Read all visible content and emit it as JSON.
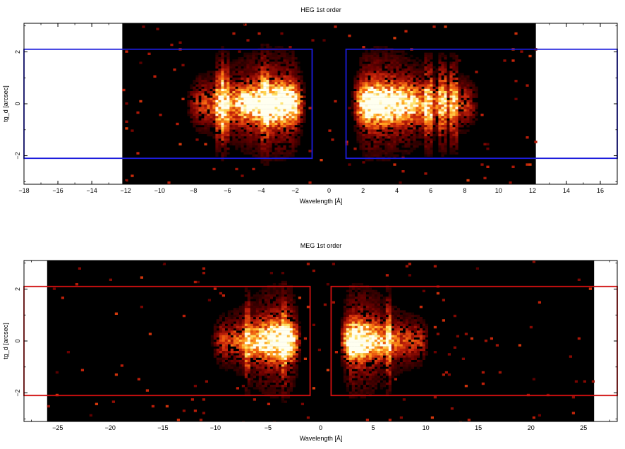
{
  "chart_data": [
    {
      "type": "heatmap",
      "title": "HEG 1st order",
      "xlabel": "Wavelength [Å]",
      "ylabel": "tg_d [arcsec]",
      "xlim": [
        -18,
        17
      ],
      "ylim": [
        -3.1,
        3.1
      ],
      "x_ticks": [
        -18,
        -16,
        -14,
        -12,
        -10,
        -8,
        -6,
        -4,
        -2,
        0,
        2,
        4,
        6,
        8,
        10,
        12,
        14,
        16
      ],
      "x_tick_labels": [
        "−18",
        "−16",
        "−14",
        "−12",
        "−10",
        "−8",
        "−6",
        "−4",
        "−2",
        "0",
        "2",
        "4",
        "6",
        "8",
        "10",
        "12",
        "14",
        "16"
      ],
      "y_ticks": [
        -2,
        0,
        2
      ],
      "y_tick_labels": [
        "−2",
        "0",
        "2"
      ],
      "data_extent_x": [
        -12.2,
        12.2
      ],
      "data_extent_y": [
        -3.1,
        3.1
      ],
      "colormap": [
        "#000000",
        "#6b0000",
        "#c0200a",
        "#f06010",
        "#ffa020",
        "#ffe060",
        "#fffff0"
      ],
      "background_color": "#000000",
      "intensity_blobs": [
        {
          "x0": -8.5,
          "x1": -1.3,
          "peak": -3.2,
          "sigma_y": 0.45
        },
        {
          "x0": 1.3,
          "x1": 9.0,
          "peak": 2.8,
          "sigma_y": 0.45
        }
      ],
      "line_features": [
        -6.5,
        -6.2,
        -3.8,
        5.9,
        6.7,
        7.3
      ],
      "extraction_regions": [
        {
          "x0": -18,
          "x1": -1.0,
          "y0": -2.1,
          "y1": 2.1
        },
        {
          "x0": 1.0,
          "x1": 17,
          "y0": -2.1,
          "y1": 2.1
        }
      ],
      "region_color": "#1c1cdc"
    },
    {
      "type": "heatmap",
      "title": "MEG 1st order",
      "xlabel": "Wavelength [Å]",
      "ylabel": "tg_d [arcsec]",
      "xlim": [
        -28.2,
        28.2
      ],
      "ylim": [
        -3.1,
        3.1
      ],
      "x_ticks": [
        -25,
        -20,
        -15,
        -10,
        -5,
        0,
        5,
        10,
        15,
        20,
        25
      ],
      "x_tick_labels": [
        "−25",
        "−20",
        "−15",
        "−10",
        "−5",
        "0",
        "5",
        "10",
        "15",
        "20",
        "25"
      ],
      "y_ticks": [
        -2,
        0,
        2
      ],
      "y_tick_labels": [
        "−2",
        "0",
        "2"
      ],
      "data_extent_x": [
        -26,
        26
      ],
      "data_extent_y": [
        -3.1,
        3.1
      ],
      "colormap": [
        "#000000",
        "#6b0000",
        "#c0200a",
        "#f06010",
        "#ffa020",
        "#ffe060",
        "#fffff0"
      ],
      "background_color": "#000000",
      "intensity_blobs": [
        {
          "x0": -10.5,
          "x1": -1.8,
          "peak": -3.8,
          "sigma_y": 0.4
        },
        {
          "x0": 1.8,
          "x1": 10.5,
          "peak": 3.3,
          "sigma_y": 0.4
        }
      ],
      "line_features": [
        -7.0,
        -3.5,
        6.5
      ],
      "extraction_regions": [
        {
          "x0": -28.2,
          "x1": -1.0,
          "y0": -2.1,
          "y1": 2.1
        },
        {
          "x0": 1.0,
          "x1": 28.2,
          "y0": -2.1,
          "y1": 2.1
        }
      ],
      "region_color": "#d01010"
    }
  ]
}
